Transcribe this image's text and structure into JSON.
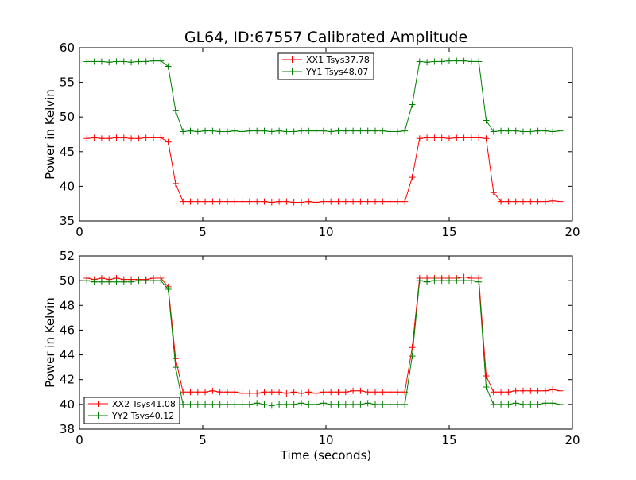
{
  "title": "GL64, ID:67557 Calibrated Amplitude",
  "chart_data": [
    {
      "type": "line",
      "ylabel": "Power in Kelvin",
      "xlabel": "",
      "xlim": [
        0,
        20
      ],
      "ylim": [
        35,
        60
      ],
      "xticks": [
        "0",
        "5",
        "10",
        "15",
        "20"
      ],
      "yticks": [
        "35",
        "40",
        "45",
        "50",
        "55",
        "60"
      ],
      "grid": false,
      "legend_position": "upper center",
      "series": [
        {
          "name": "XX1 Tsys37.78",
          "color": "#ff0000",
          "x": [
            0.3,
            0.6,
            0.9,
            1.2,
            1.5,
            1.8,
            2.1,
            2.4,
            2.7,
            3.0,
            3.3,
            3.6,
            3.9,
            4.2,
            4.5,
            4.8,
            5.1,
            5.4,
            5.7,
            6.0,
            6.3,
            6.6,
            6.9,
            7.2,
            7.5,
            7.8,
            8.1,
            8.4,
            8.7,
            9.0,
            9.3,
            9.6,
            9.9,
            10.2,
            10.5,
            10.8,
            11.1,
            11.4,
            11.7,
            12.0,
            12.3,
            12.6,
            12.9,
            13.2,
            13.5,
            13.8,
            14.1,
            14.4,
            14.7,
            15.0,
            15.3,
            15.6,
            15.9,
            16.2,
            16.5,
            16.8,
            17.1,
            17.4,
            17.7,
            18.0,
            18.3,
            18.6,
            18.9,
            19.2,
            19.5
          ],
          "y": [
            46.9,
            47.0,
            46.9,
            46.9,
            47.0,
            47.0,
            46.9,
            46.9,
            47.0,
            47.0,
            47.0,
            46.4,
            40.4,
            37.8,
            37.8,
            37.8,
            37.8,
            37.8,
            37.8,
            37.8,
            37.8,
            37.8,
            37.8,
            37.8,
            37.8,
            37.7,
            37.8,
            37.8,
            37.7,
            37.7,
            37.8,
            37.7,
            37.8,
            37.8,
            37.8,
            37.8,
            37.8,
            37.8,
            37.8,
            37.8,
            37.8,
            37.8,
            37.8,
            37.8,
            41.3,
            46.9,
            47.0,
            47.0,
            47.0,
            46.9,
            47.0,
            47.0,
            47.0,
            47.0,
            46.9,
            39.1,
            37.8,
            37.8,
            37.8,
            37.8,
            37.8,
            37.8,
            37.8,
            37.9,
            37.8
          ]
        },
        {
          "name": "YY1 Tsys48.07",
          "color": "#008000",
          "x": [
            0.3,
            0.6,
            0.9,
            1.2,
            1.5,
            1.8,
            2.1,
            2.4,
            2.7,
            3.0,
            3.3,
            3.6,
            3.9,
            4.2,
            4.5,
            4.8,
            5.1,
            5.4,
            5.7,
            6.0,
            6.3,
            6.6,
            6.9,
            7.2,
            7.5,
            7.8,
            8.1,
            8.4,
            8.7,
            9.0,
            9.3,
            9.6,
            9.9,
            10.2,
            10.5,
            10.8,
            11.1,
            11.4,
            11.7,
            12.0,
            12.3,
            12.6,
            12.9,
            13.2,
            13.5,
            13.8,
            14.1,
            14.4,
            14.7,
            15.0,
            15.3,
            15.6,
            15.9,
            16.2,
            16.5,
            16.8,
            17.1,
            17.4,
            17.7,
            18.0,
            18.3,
            18.6,
            18.9,
            19.2,
            19.5
          ],
          "y": [
            58.0,
            58.0,
            58.0,
            57.9,
            58.0,
            58.0,
            57.9,
            58.0,
            58.0,
            58.1,
            58.1,
            57.3,
            50.9,
            47.9,
            48.0,
            47.9,
            48.0,
            48.0,
            47.9,
            47.9,
            48.0,
            47.9,
            48.0,
            48.0,
            48.0,
            47.9,
            48.0,
            47.9,
            47.9,
            48.0,
            48.0,
            48.0,
            48.0,
            47.9,
            48.0,
            48.0,
            48.0,
            48.0,
            48.0,
            48.0,
            48.0,
            47.9,
            47.9,
            48.0,
            51.8,
            58.0,
            57.9,
            58.0,
            58.0,
            58.1,
            58.1,
            58.1,
            58.0,
            58.0,
            49.5,
            47.9,
            48.0,
            48.0,
            48.0,
            47.9,
            47.9,
            48.0,
            48.0,
            47.9,
            48.0
          ]
        }
      ]
    },
    {
      "type": "line",
      "ylabel": "Power in Kelvin",
      "xlabel": "Time (seconds)",
      "xlim": [
        0,
        20
      ],
      "ylim": [
        38,
        52
      ],
      "xticks": [
        "0",
        "5",
        "10",
        "15",
        "20"
      ],
      "yticks": [
        "38",
        "40",
        "42",
        "44",
        "46",
        "48",
        "50",
        "52"
      ],
      "grid": false,
      "legend_position": "lower left",
      "series": [
        {
          "name": "XX2 Tsys41.08",
          "color": "#ff0000",
          "x": [
            0.3,
            0.6,
            0.9,
            1.2,
            1.5,
            1.8,
            2.1,
            2.4,
            2.7,
            3.0,
            3.3,
            3.6,
            3.9,
            4.2,
            4.5,
            4.8,
            5.1,
            5.4,
            5.7,
            6.0,
            6.3,
            6.6,
            6.9,
            7.2,
            7.5,
            7.8,
            8.1,
            8.4,
            8.7,
            9.0,
            9.3,
            9.6,
            9.9,
            10.2,
            10.5,
            10.8,
            11.1,
            11.4,
            11.7,
            12.0,
            12.3,
            12.6,
            12.9,
            13.2,
            13.5,
            13.8,
            14.1,
            14.4,
            14.7,
            15.0,
            15.3,
            15.6,
            15.9,
            16.2,
            16.5,
            16.8,
            17.1,
            17.4,
            17.7,
            18.0,
            18.3,
            18.6,
            18.9,
            19.2,
            19.5
          ],
          "y": [
            50.2,
            50.1,
            50.2,
            50.1,
            50.2,
            50.1,
            50.1,
            50.1,
            50.1,
            50.2,
            50.2,
            49.5,
            43.7,
            41.0,
            41.0,
            41.0,
            41.0,
            41.1,
            41.0,
            41.0,
            41.0,
            40.9,
            40.9,
            40.9,
            41.0,
            41.0,
            41.0,
            40.9,
            41.0,
            40.9,
            41.0,
            40.9,
            41.0,
            41.0,
            41.0,
            41.0,
            41.1,
            41.1,
            41.0,
            41.0,
            41.0,
            41.0,
            41.0,
            41.0,
            44.6,
            50.2,
            50.2,
            50.2,
            50.2,
            50.2,
            50.2,
            50.3,
            50.2,
            50.2,
            42.3,
            41.0,
            41.0,
            41.0,
            41.1,
            41.1,
            41.1,
            41.1,
            41.1,
            41.2,
            41.1
          ]
        },
        {
          "name": "YY2 Tsys40.12",
          "color": "#008000",
          "x": [
            0.3,
            0.6,
            0.9,
            1.2,
            1.5,
            1.8,
            2.1,
            2.4,
            2.7,
            3.0,
            3.3,
            3.6,
            3.9,
            4.2,
            4.5,
            4.8,
            5.1,
            5.4,
            5.7,
            6.0,
            6.3,
            6.6,
            6.9,
            7.2,
            7.5,
            7.8,
            8.1,
            8.4,
            8.7,
            9.0,
            9.3,
            9.6,
            9.9,
            10.2,
            10.5,
            10.8,
            11.1,
            11.4,
            11.7,
            12.0,
            12.3,
            12.6,
            12.9,
            13.2,
            13.5,
            13.8,
            14.1,
            14.4,
            14.7,
            15.0,
            15.3,
            15.6,
            15.9,
            16.2,
            16.5,
            16.8,
            17.1,
            17.4,
            17.7,
            18.0,
            18.3,
            18.6,
            18.9,
            19.2,
            19.5
          ],
          "y": [
            50.0,
            49.9,
            49.9,
            49.9,
            49.9,
            49.9,
            49.9,
            50.0,
            50.0,
            50.0,
            50.0,
            49.3,
            43.0,
            40.0,
            40.0,
            40.0,
            40.0,
            40.0,
            40.0,
            40.0,
            40.0,
            40.0,
            40.0,
            40.1,
            40.0,
            39.9,
            40.0,
            40.0,
            40.0,
            40.1,
            40.0,
            40.0,
            40.1,
            40.0,
            40.0,
            40.0,
            40.0,
            40.0,
            40.1,
            40.0,
            40.0,
            40.0,
            40.0,
            40.0,
            43.9,
            50.0,
            49.9,
            50.0,
            50.0,
            50.0,
            50.0,
            50.0,
            50.0,
            49.9,
            41.4,
            40.0,
            40.0,
            40.0,
            40.1,
            40.0,
            40.0,
            40.0,
            40.1,
            40.1,
            40.0
          ]
        }
      ]
    }
  ]
}
